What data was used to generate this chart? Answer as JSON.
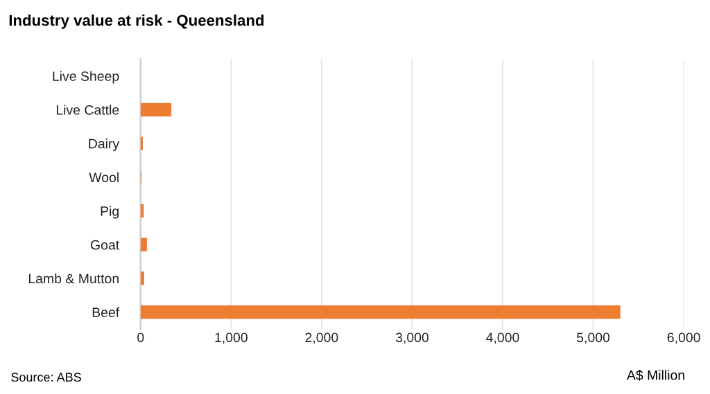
{
  "chart_data": {
    "type": "bar",
    "orientation": "horizontal",
    "title": "Industry value at risk - Queensland",
    "xlabel": "A$ Million",
    "categories": [
      "Live Sheep",
      "Live Cattle",
      "Dairy",
      "Wool",
      "Pig",
      "Goat",
      "Lamb & Mutton",
      "Beef"
    ],
    "values": [
      0,
      340,
      25,
      10,
      35,
      70,
      40,
      5300
    ],
    "color": "#ed7d31",
    "xlim": [
      0,
      6000
    ],
    "xticks": [
      {
        "value": 0,
        "label": "0"
      },
      {
        "value": 1000,
        "label": "1,000"
      },
      {
        "value": 2000,
        "label": "2,000"
      },
      {
        "value": 3000,
        "label": "3,000"
      },
      {
        "value": 4000,
        "label": "4,000"
      },
      {
        "value": 5000,
        "label": "5,000"
      },
      {
        "value": 6000,
        "label": "6,000"
      }
    ],
    "grid": "x",
    "legend": false,
    "annotations": [
      "Source: ABS"
    ]
  }
}
